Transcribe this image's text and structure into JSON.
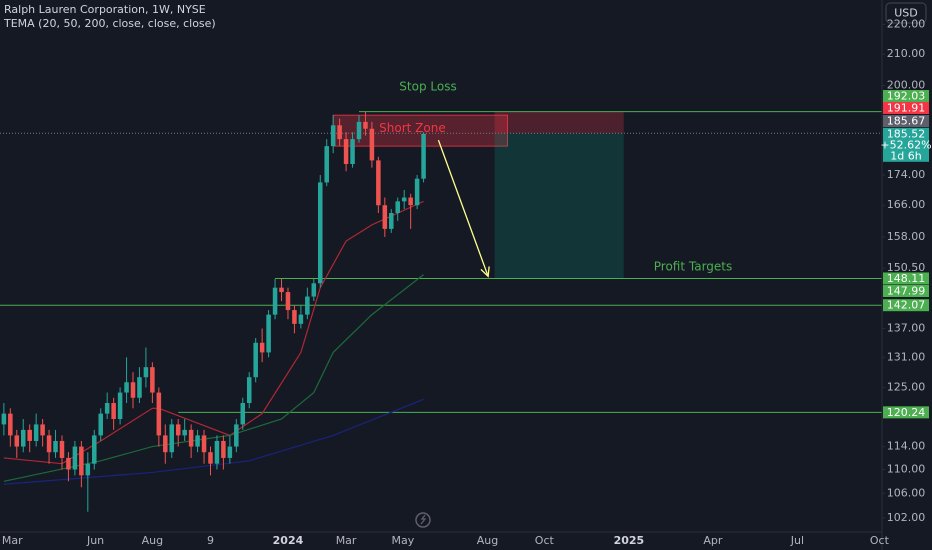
{
  "chart_data": {
    "type": "candlestick",
    "title": "Ralph Lauren Corporation, 1W, NYSE",
    "subtitle": "TEMA (20, 50, 200, close, close, close)",
    "currency": "USD",
    "log_scale": true,
    "grid": false,
    "up_color": "#26a69a",
    "down_color": "#ef5350",
    "xlim": [
      -0.6,
      136
    ],
    "xticks": [
      {
        "value": 1.3,
        "label": "Mar"
      },
      {
        "value": 14.2,
        "label": "Jun"
      },
      {
        "value": 23,
        "label": "Aug"
      },
      {
        "value": 32,
        "label": "9"
      },
      {
        "value": 44,
        "label": "2024"
      },
      {
        "value": 53,
        "label": "Mar"
      },
      {
        "value": 61.8,
        "label": "May"
      },
      {
        "value": 74.9,
        "label": "Aug"
      },
      {
        "value": 83.7,
        "label": "Oct"
      },
      {
        "value": 96.8,
        "label": "2025"
      },
      {
        "value": 109.8,
        "label": "Apr"
      },
      {
        "value": 122.9,
        "label": "Jul"
      },
      {
        "value": 135.6,
        "label": "Oct"
      }
    ],
    "ylim": [
      99.8,
      228.5
    ],
    "yticks": [
      {
        "value": 220,
        "label": "220.00"
      },
      {
        "value": 210,
        "label": "210.00"
      },
      {
        "value": 200,
        "label": "200.00"
      },
      {
        "value": 174,
        "label": "174.00"
      },
      {
        "value": 166,
        "label": "166.00"
      },
      {
        "value": 158,
        "label": "158.00"
      },
      {
        "value": 150.5,
        "label": "150.50"
      },
      {
        "value": 137,
        "label": "137.00"
      },
      {
        "value": 131,
        "label": "131.00"
      },
      {
        "value": 125,
        "label": "125.00"
      },
      {
        "value": 114,
        "label": "114.00"
      },
      {
        "value": 110,
        "label": "110.00"
      },
      {
        "value": 106,
        "label": "106.00"
      },
      {
        "value": 102,
        "label": "102.00"
      }
    ],
    "candles": {
      "x": [
        0,
        1,
        2,
        3,
        4,
        5,
        6,
        7,
        8,
        9,
        10,
        11,
        12,
        13,
        14,
        15,
        16,
        17,
        18,
        19,
        20,
        21,
        22,
        23,
        24,
        25,
        26,
        27,
        28,
        29,
        30,
        31,
        32,
        33,
        34,
        35,
        36,
        37,
        38,
        39,
        40,
        41,
        42,
        43,
        44,
        45,
        46,
        47,
        48,
        49,
        50,
        51,
        52,
        53,
        54,
        55,
        56,
        57,
        58,
        59,
        60,
        61,
        62,
        63,
        64,
        65
      ],
      "open": [
        118,
        120,
        116,
        114,
        117,
        115,
        118,
        116,
        113,
        115,
        112,
        110,
        114,
        109,
        111,
        116,
        120,
        122,
        119,
        124,
        126,
        123,
        127,
        129,
        124,
        116,
        113,
        118,
        116,
        117,
        114,
        116,
        113,
        111,
        115,
        112,
        114,
        118,
        122,
        127,
        134,
        132,
        140,
        146,
        145,
        141,
        138,
        140,
        144,
        147,
        172,
        182,
        188,
        184,
        177,
        184,
        189,
        187,
        178,
        166,
        160,
        164,
        167,
        168,
        166,
        173
      ],
      "high": [
        122,
        121,
        117,
        119,
        118,
        120,
        119,
        117,
        117,
        116,
        113,
        115,
        115,
        113,
        117,
        121,
        124,
        123,
        125,
        131,
        128,
        129,
        133,
        130,
        125,
        118,
        119,
        119,
        119,
        118,
        117,
        117,
        114,
        116,
        116,
        116,
        119,
        123,
        128,
        135,
        137,
        141,
        148,
        148,
        146,
        142,
        142,
        146,
        148,
        174,
        184,
        191,
        190,
        186,
        186,
        191,
        192,
        189,
        179,
        168,
        165,
        168,
        170,
        169,
        174,
        186
      ],
      "low": [
        116,
        114,
        112,
        113,
        113,
        114,
        114,
        111,
        112,
        110,
        108,
        109,
        107,
        103,
        110,
        115,
        119,
        117,
        118,
        122,
        121,
        122,
        125,
        122,
        114,
        111,
        112,
        114,
        115,
        112,
        113,
        111,
        109,
        110,
        110,
        111,
        113,
        117,
        121,
        126,
        130,
        131,
        139,
        143,
        139,
        136,
        137,
        139,
        143,
        146,
        171,
        180,
        182,
        175,
        176,
        183,
        185,
        176,
        164,
        158,
        159,
        162,
        165,
        160,
        165,
        172
      ],
      "close": [
        120,
        116,
        114,
        117,
        115,
        118,
        116,
        113,
        115,
        112,
        110,
        114,
        109,
        111,
        116,
        120,
        122,
        119,
        124,
        126,
        123,
        127,
        129,
        124,
        116,
        113,
        118,
        116,
        117,
        114,
        116,
        113,
        111,
        115,
        112,
        114,
        118,
        122,
        127,
        134,
        132,
        140,
        146,
        145,
        141,
        138,
        140,
        144,
        147,
        172,
        182,
        188,
        184,
        177,
        184,
        189,
        187,
        178,
        166,
        160,
        164,
        167,
        168,
        166,
        173,
        185.52
      ]
    },
    "series": [
      {
        "color": "#b22833",
        "x": [
          0,
          9,
          15,
          23,
          24,
          35,
          40,
          46,
          49,
          53,
          57,
          65
        ],
        "values": [
          112,
          111,
          115,
          121,
          121,
          116,
          120,
          132,
          146,
          157,
          161,
          167
        ]
      },
      {
        "color": "#1b6b3a",
        "x": [
          0,
          15,
          23,
          35,
          43,
          48,
          51,
          57,
          65
        ],
        "values": [
          108,
          111.5,
          114,
          116,
          119,
          124,
          132,
          140,
          149
        ]
      },
      {
        "color": "#1a237e",
        "x": [
          0,
          23,
          38,
          51,
          65
        ],
        "values": [
          107.5,
          109.5,
          111.5,
          116,
          122.7
        ]
      }
    ],
    "levels": [
      {
        "value": 192.03,
        "x_start": 55,
        "color": "#4caf50"
      },
      {
        "value": 148.11,
        "x_start": 42,
        "color": "#4caf50"
      },
      {
        "value": 142.07,
        "color": "#4caf50"
      },
      {
        "value": 120.24,
        "x_start": 27,
        "color": "#4caf50"
      }
    ],
    "last_price_line": 185.67,
    "price_labels": [
      {
        "value": 192.03,
        "color": "#4caf50"
      },
      {
        "value": 191.91,
        "color": "#f23645"
      },
      {
        "value": 185.67,
        "color": "#5d606b"
      },
      {
        "value": 185.52,
        "color": "#26a69a",
        "lines": [
          "+52.62%",
          "1d 6h"
        ]
      },
      {
        "value": 148.11,
        "color": "#4caf50"
      },
      {
        "value": 147.99,
        "color": "#4caf50"
      },
      {
        "value": 142.07,
        "color": "#4caf50"
      },
      {
        "value": 120.24,
        "color": "#4caf50"
      }
    ],
    "short_zone": {
      "label": "Short Zone",
      "x": [
        51,
        78
      ],
      "top": 191,
      "bottom": 182
    },
    "position": {
      "x": [
        76,
        96
      ],
      "entry": 185.67,
      "stop": 192.03,
      "target": 148.11
    },
    "arrow": {
      "x": [
        67.3,
        75
      ],
      "y": [
        183.7,
        148.6
      ]
    },
    "annotations": [
      "Stop Loss",
      "Profit Targets"
    ]
  }
}
